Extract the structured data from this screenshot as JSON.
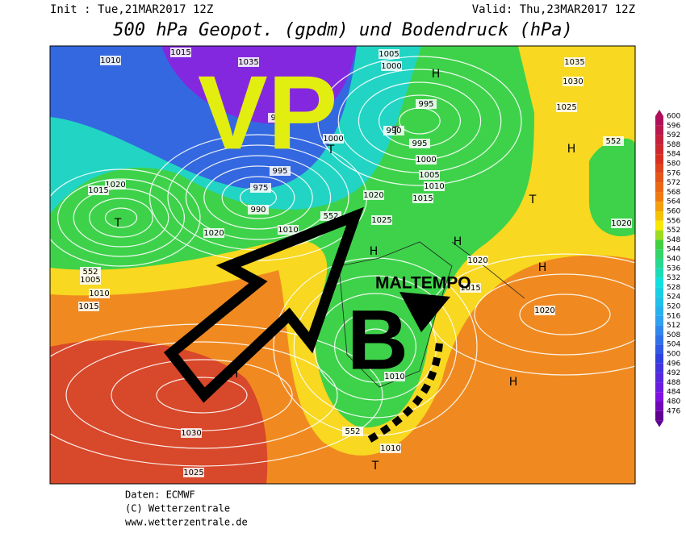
{
  "header": {
    "init": "Init : Tue,21MAR2017 12Z",
    "valid": "Valid: Thu,23MAR2017 12Z",
    "title": "500 hPa Geopot. (gpdm) und Bodendruck (hPa)"
  },
  "annotations": {
    "vp": "VP",
    "b": "B",
    "maltempo": "MALTEMPO"
  },
  "isobar_labels": [
    "1010",
    "1015",
    "1035",
    "1005",
    "1000",
    "1035",
    "1030",
    "995",
    "1025",
    "990",
    "995",
    "1000",
    "1000",
    "985",
    "995",
    "975",
    "990",
    "1005",
    "1010",
    "1015",
    "1020",
    "1015",
    "1020",
    "1025",
    "1020",
    "1010",
    "1020",
    "1020",
    "1005",
    "1010",
    "1015",
    "1015",
    "1020",
    "1010",
    "1030",
    "1025",
    "1010",
    "552",
    "552",
    "552",
    "552"
  ],
  "pressure_centers": [
    "H",
    "T",
    "T",
    "H",
    "T",
    "H",
    "H",
    "H",
    "T",
    "H",
    "T",
    "H"
  ],
  "colorbar": {
    "labels": [
      600,
      596,
      592,
      588,
      584,
      580,
      576,
      572,
      568,
      564,
      560,
      556,
      552,
      548,
      544,
      540,
      536,
      532,
      528,
      524,
      520,
      516,
      512,
      508,
      504,
      500,
      496,
      492,
      488,
      484,
      480,
      476
    ]
  },
  "footer": {
    "source": "Daten: ECMWF",
    "copyright": "(C) Wetterzentrale",
    "url": "www.wetterzentrale.de"
  }
}
